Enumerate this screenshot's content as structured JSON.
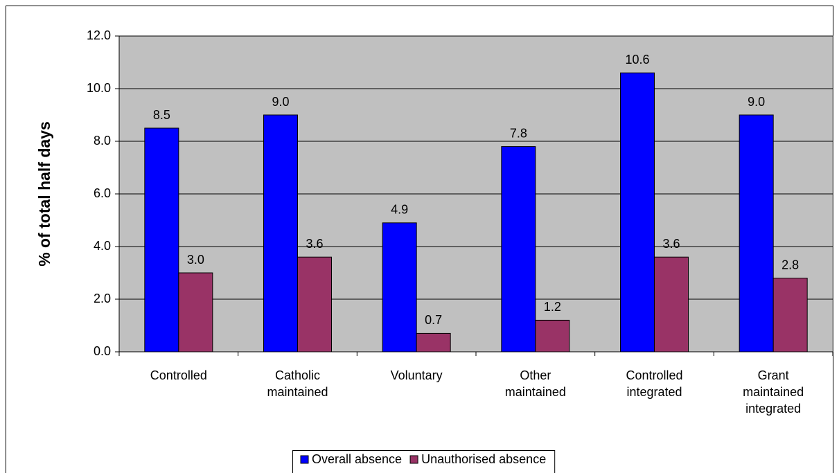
{
  "chart_data": {
    "type": "bar",
    "y_label": "% of total half days",
    "categories": [
      "Controlled",
      "Catholic\nmaintained",
      "Voluntary",
      "Other\nmaintained",
      "Controlled\nintegrated",
      "Grant\nmaintained\nintegrated"
    ],
    "series": [
      {
        "name": "Overall absence",
        "color": "#0000ff",
        "values": [
          8.5,
          9.0,
          4.9,
          7.8,
          10.6,
          9.0
        ],
        "value_labels": [
          "8.5",
          "9.0",
          "4.9",
          "7.8",
          "10.6",
          "9.0"
        ]
      },
      {
        "name": "Unauthorised absence",
        "color": "#993366",
        "values": [
          3.0,
          3.6,
          0.7,
          1.2,
          3.6,
          2.8
        ],
        "value_labels": [
          "3.0",
          "3.6",
          "0.7",
          "1.2",
          "3.6",
          "2.8"
        ]
      }
    ],
    "ylim": [
      0,
      12
    ],
    "yticks": [
      {
        "value": 0,
        "label": "0.0"
      },
      {
        "value": 2,
        "label": "2.0"
      },
      {
        "value": 4,
        "label": "4.0"
      },
      {
        "value": 6,
        "label": "6.0"
      },
      {
        "value": 8,
        "label": "8.0"
      },
      {
        "value": 10,
        "label": "10.0"
      },
      {
        "value": 12,
        "label": "12.0"
      }
    ],
    "grid": true,
    "legend": "bottom",
    "plot_background": "#c0c0c0"
  }
}
